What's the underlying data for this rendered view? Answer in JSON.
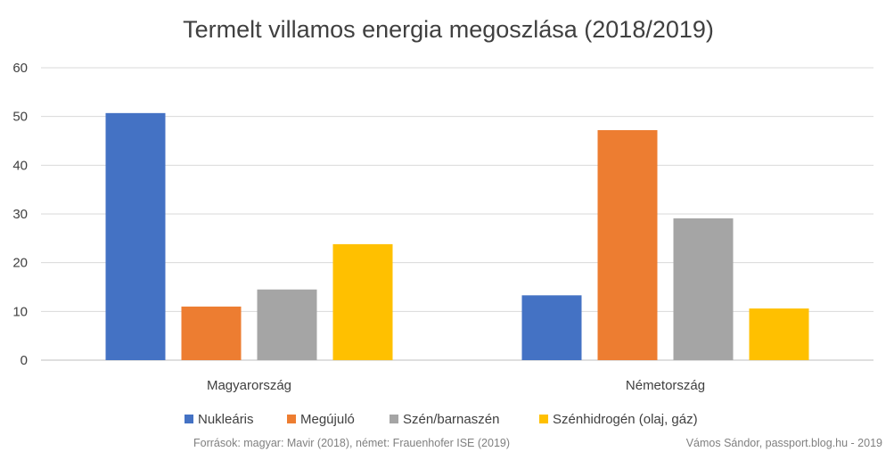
{
  "chart_data": {
    "type": "bar",
    "title": "Termelt villamos energia megoszlása (2018/2019)",
    "categories": [
      "Magyarország",
      "Németország"
    ],
    "series": [
      {
        "name": "Nukleáris",
        "color": "#4472C4",
        "values": [
          50.7,
          13.3
        ]
      },
      {
        "name": "Megújuló",
        "color": "#ED7D31",
        "values": [
          11.0,
          47.2
        ]
      },
      {
        "name": "Szén/barnaszén",
        "color": "#A5A5A5",
        "values": [
          14.5,
          29.1
        ]
      },
      {
        "name": "Szénhidrogén (olaj, gáz)",
        "color": "#FFC000",
        "values": [
          23.8,
          10.6
        ]
      }
    ],
    "ylim": [
      0,
      60
    ],
    "yticks": [
      0,
      10,
      20,
      30,
      40,
      50,
      60
    ],
    "grid": true,
    "legend_position": "bottom"
  },
  "footer": {
    "source": "Források: magyar: Mavir (2018), német: Frauenhofer ISE (2019)",
    "credit": "Vámos Sándor, passport.blog.hu - 2019"
  }
}
